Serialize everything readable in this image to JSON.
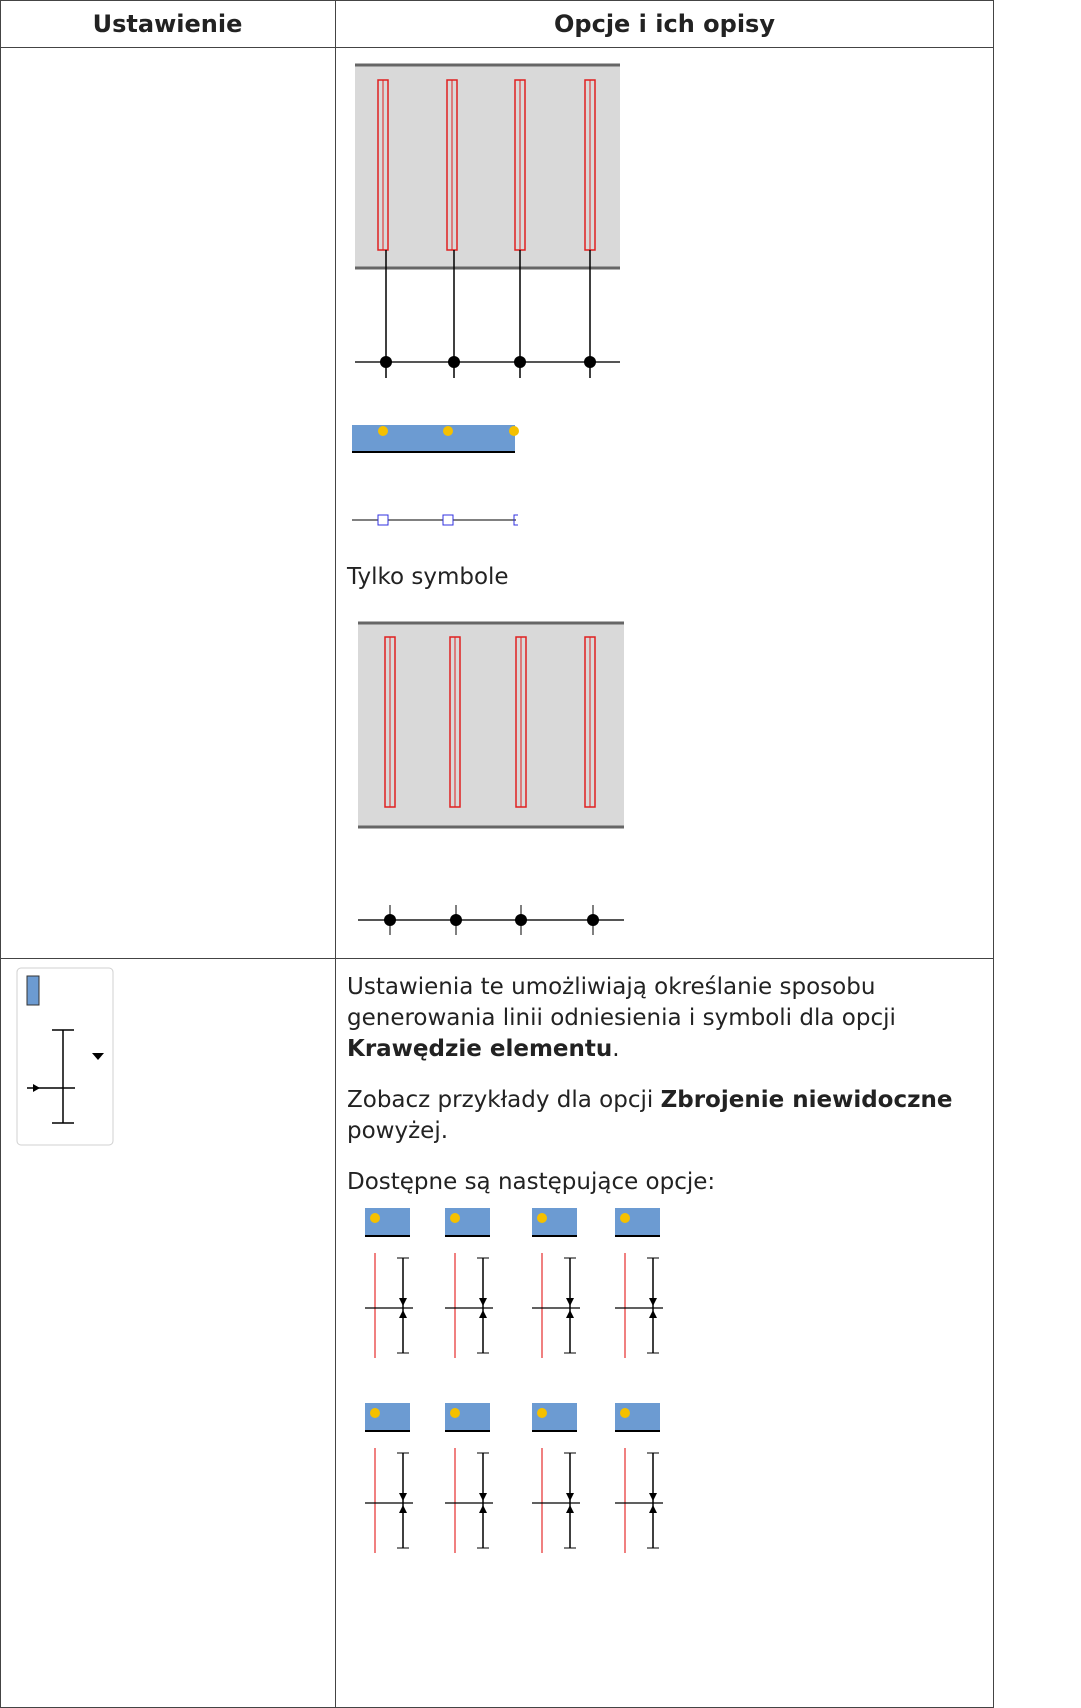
{
  "table": {
    "header": [
      "Ustawienie",
      "Opcje i ich opisy"
    ],
    "rows": [
      {
        "caption": "Tylko symbole"
      },
      {
        "paragraphs": [
          [
            "Ustawienia te umożliwiają określanie sposobu generowania linii odniesienia i symboli dla opcji ",
            "Krawędzie elementu",
            "."
          ],
          [
            "Zobacz przykłady dla opcji ",
            "Zbrojenie niewidoczne",
            " powyżej."
          ],
          [
            "Dostępne są następujące opcje:"
          ]
        ]
      }
    ]
  }
}
